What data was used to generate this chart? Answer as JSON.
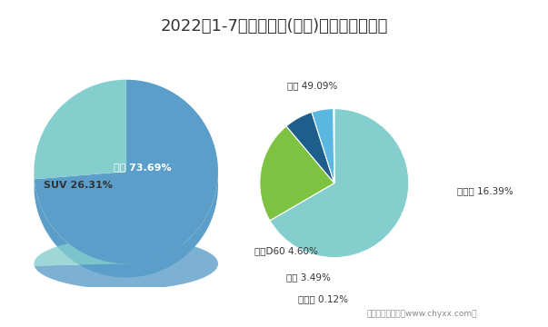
{
  "title": "2022年1-7月东风日产(轿车)销量占比统计图",
  "title_fontsize": 13,
  "background_color": "#ffffff",
  "left_pie": {
    "labels": [
      "轿车",
      "SUV"
    ],
    "values": [
      73.69,
      26.31
    ],
    "colors": [
      "#5b9ec9",
      "#85cece"
    ],
    "label_texts": [
      "轿车 73.69%",
      "SUV 26.31%"
    ],
    "label_colors": [
      "#ffffff",
      "#333333"
    ]
  },
  "right_pie": {
    "labels": [
      "轩逸",
      "新天籁",
      "启辰D60",
      "骐达",
      "新蓝鸟"
    ],
    "values": [
      49.09,
      16.39,
      4.6,
      3.49,
      0.12
    ],
    "colors": [
      "#85cece",
      "#7dc241",
      "#1d5f8a",
      "#5ab8e0",
      "#e8e8e8"
    ],
    "label_texts": [
      "轩逸 49.09%",
      "新天籁 16.39%",
      "启辰D60 4.60%",
      "骐达 3.49%",
      "新蓝鸟 0.12%"
    ]
  },
  "footer": "制图：智研咨询（www.chyxx.com）"
}
